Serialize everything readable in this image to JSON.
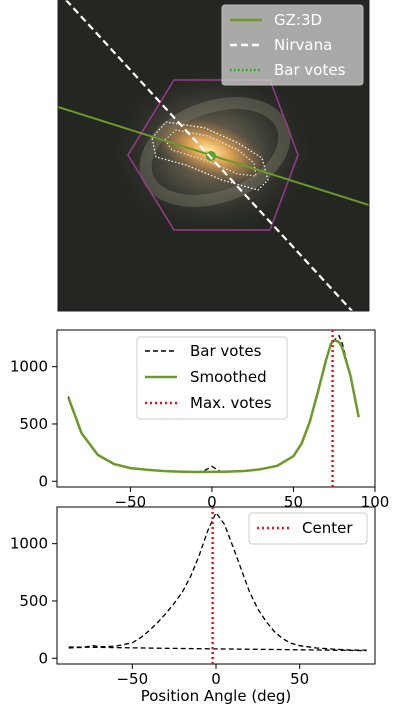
{
  "image_panel": {
    "legend": [
      {
        "label": "GZ:3D",
        "color": "#6b9a2a",
        "style": "solid"
      },
      {
        "label": "Nirvana",
        "color": "#ffffff",
        "style": "dashed"
      },
      {
        "label": "Bar votes",
        "color": "#1f9e1f",
        "style": "dotted"
      }
    ],
    "colors": {
      "hexagon": "#9b3a8c",
      "galaxy_core": "#e0b060",
      "background": "#242622"
    }
  },
  "chart_data": [
    {
      "type": "line",
      "xlim": [
        -95,
        100
      ],
      "ylim": [
        -50,
        1320
      ],
      "xticks": [
        -50,
        0,
        50,
        100
      ],
      "yticks": [
        0,
        500,
        1000
      ],
      "xlabel": "",
      "ylabel": "",
      "legend_position": "top-center",
      "series": [
        {
          "name": "Bar votes",
          "style": "dashed",
          "color": "#000000",
          "x": [
            -88,
            -80,
            -70,
            -60,
            -50,
            -40,
            -30,
            -20,
            -10,
            -5,
            0,
            5,
            10,
            20,
            30,
            40,
            50,
            55,
            60,
            65,
            70,
            73,
            75,
            78,
            80,
            85,
            90
          ],
          "y": [
            740,
            420,
            230,
            150,
            115,
            100,
            90,
            85,
            82,
            90,
            130,
            88,
            85,
            90,
            105,
            135,
            220,
            330,
            520,
            780,
            1060,
            1200,
            1230,
            1270,
            1200,
            920,
            560
          ]
        },
        {
          "name": "Smoothed",
          "style": "solid",
          "color": "#6b9a2a",
          "x": [
            -88,
            -80,
            -70,
            -60,
            -50,
            -40,
            -30,
            -20,
            -10,
            0,
            10,
            20,
            30,
            40,
            50,
            55,
            60,
            65,
            70,
            73,
            75,
            78,
            80,
            85,
            90
          ],
          "y": [
            730,
            420,
            230,
            150,
            115,
            100,
            90,
            84,
            81,
            82,
            84,
            90,
            105,
            135,
            220,
            330,
            520,
            780,
            1060,
            1200,
            1230,
            1215,
            1160,
            920,
            560
          ]
        }
      ],
      "vlines": [
        {
          "name": "Max. votes",
          "x": 74,
          "color": "#e8141c",
          "style": "dotted"
        }
      ]
    },
    {
      "type": "line",
      "xlim": [
        -95,
        95
      ],
      "ylim": [
        -50,
        1320
      ],
      "xticks": [
        -50,
        0,
        50
      ],
      "yticks": [
        0,
        500,
        1000
      ],
      "xlabel": "Position Angle (deg)",
      "ylabel": "",
      "legend_position": "top-right",
      "series": [
        {
          "name": "",
          "style": "dashed",
          "color": "#000000",
          "x": [
            -88,
            -80,
            -73,
            -70,
            -60,
            -50,
            -45,
            -40,
            -35,
            -30,
            -25,
            -20,
            -15,
            -10,
            -5,
            0,
            5,
            10,
            15,
            20,
            25,
            30,
            35,
            40,
            45,
            50,
            55,
            60,
            70,
            80,
            90
          ],
          "y": [
            90,
            95,
            110,
            100,
            105,
            135,
            180,
            240,
            310,
            390,
            480,
            580,
            720,
            900,
            1110,
            1270,
            1170,
            980,
            780,
            580,
            430,
            320,
            230,
            170,
            130,
            110,
            100,
            90,
            80,
            72,
            70
          ]
        },
        {
          "name": "",
          "style": "dashed",
          "color": "#000000",
          "x": [
            -88,
            -60,
            -30,
            0,
            30,
            60,
            90
          ],
          "y": [
            98,
            93,
            87,
            82,
            77,
            72,
            67
          ]
        }
      ],
      "vlines": [
        {
          "name": "Center",
          "x": -2,
          "color": "#e8141c",
          "style": "dotted"
        }
      ]
    }
  ]
}
